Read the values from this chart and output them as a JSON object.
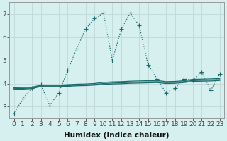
{
  "xlabel": "Humidex (Indice chaleur)",
  "background_color": "#d6efef",
  "grid_color": "#c0d8d8",
  "line_color": "#1a6b6b",
  "x_values": [
    0,
    1,
    2,
    3,
    4,
    5,
    6,
    7,
    8,
    9,
    10,
    11,
    12,
    13,
    14,
    15,
    16,
    17,
    18,
    19,
    20,
    21,
    22,
    23
  ],
  "series1": [
    2.7,
    3.35,
    3.8,
    3.95,
    3.05,
    3.6,
    4.55,
    5.5,
    6.35,
    6.8,
    7.05,
    5.0,
    6.35,
    7.05,
    6.5,
    4.8,
    4.2,
    3.6,
    3.8,
    4.2,
    4.15,
    4.5,
    3.7,
    4.4
  ],
  "series2": [
    3.82,
    3.83,
    3.84,
    3.93,
    3.93,
    3.93,
    3.95,
    3.97,
    3.98,
    4.0,
    4.05,
    4.07,
    4.08,
    4.1,
    4.11,
    4.12,
    4.13,
    4.08,
    4.09,
    4.12,
    4.18,
    4.19,
    4.2,
    4.22
  ],
  "series3": [
    3.78,
    3.79,
    3.81,
    3.9,
    3.9,
    3.9,
    3.91,
    3.93,
    3.94,
    3.96,
    4.0,
    4.02,
    4.03,
    4.05,
    4.06,
    4.07,
    4.08,
    4.04,
    4.05,
    4.08,
    4.13,
    4.14,
    4.15,
    4.17
  ],
  "series4": [
    3.75,
    3.76,
    3.78,
    3.87,
    3.87,
    3.87,
    3.88,
    3.9,
    3.91,
    3.93,
    3.96,
    3.98,
    3.99,
    4.01,
    4.02,
    4.03,
    4.04,
    4.0,
    4.01,
    4.04,
    4.09,
    4.1,
    4.11,
    4.13
  ],
  "xlim": [
    -0.5,
    23.5
  ],
  "ylim": [
    2.5,
    7.5
  ],
  "yticks": [
    3,
    4,
    5,
    6,
    7
  ],
  "xticks": [
    0,
    1,
    2,
    3,
    4,
    5,
    6,
    7,
    8,
    9,
    10,
    11,
    12,
    13,
    14,
    15,
    16,
    17,
    18,
    19,
    20,
    21,
    22,
    23
  ],
  "tick_fontsize": 6.5,
  "axis_fontsize": 7.5
}
